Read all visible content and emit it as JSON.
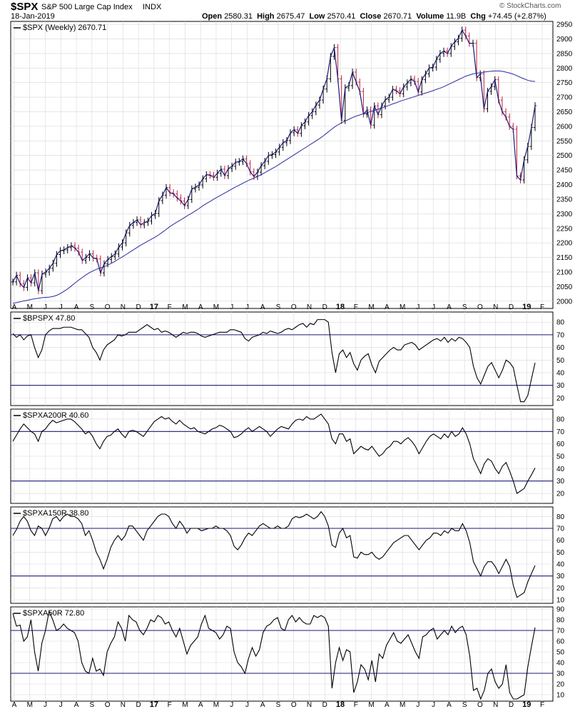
{
  "header": {
    "symbol": "$SPX",
    "name": "S&P 500 Large Cap Index",
    "exchange": "INDX",
    "date": "18-Jan-2019",
    "brand": "© StockCharts.com",
    "open_label": "Open",
    "open": "2580.31",
    "high_label": "High",
    "high": "2675.47",
    "low_label": "Low",
    "low": "2570.41",
    "close_label": "Close",
    "close": "2670.71",
    "volume_label": "Volume",
    "volume": "11.9B",
    "chg_label": "Chg",
    "chg": "+74.45 (+2.87%)"
  },
  "colors": {
    "price_line": "#1a1a7a",
    "ma_line": "#2a2aa0",
    "up_bar": "#000000",
    "down_bar": "#c0203a",
    "ref_line": "#1a1a7a",
    "grid": "#d8d8d8"
  },
  "x_axis_labels": [
    "A",
    "M",
    "J",
    "J",
    "A",
    "S",
    "O",
    "N",
    "D",
    "17",
    "F",
    "M",
    "A",
    "M",
    "J",
    "J",
    "A",
    "S",
    "O",
    "N",
    "D",
    "18",
    "F",
    "M",
    "A",
    "M",
    "J",
    "J",
    "A",
    "S",
    "O",
    "N",
    "D",
    "19",
    "F"
  ],
  "chart_data": [
    {
      "type": "line",
      "legend": "$SPX (Weekly) 2670.71",
      "series_names": [
        "$SPX (Weekly)"
      ],
      "y_ticks": [
        2000,
        2050,
        2100,
        2150,
        2200,
        2250,
        2300,
        2350,
        2400,
        2450,
        2500,
        2550,
        2600,
        2650,
        2700,
        2750,
        2800,
        2850,
        2900,
        2950
      ],
      "ylim": [
        1975,
        2960
      ],
      "close_series": [
        2066,
        2089,
        2060,
        2047,
        2080,
        2063,
        2097,
        2036,
        2093,
        2100,
        2113,
        2130,
        2160,
        2173,
        2176,
        2184,
        2190,
        2182,
        2168,
        2140,
        2150,
        2163,
        2148,
        2145,
        2097,
        2128,
        2143,
        2153,
        2162,
        2186,
        2200,
        2234,
        2260,
        2270,
        2279,
        2262,
        2270,
        2275,
        2294,
        2301,
        2345,
        2364,
        2390,
        2372,
        2368,
        2354,
        2344,
        2328,
        2349,
        2385,
        2391,
        2399,
        2420,
        2434,
        2432,
        2425,
        2439,
        2453,
        2431,
        2455,
        2463,
        2477,
        2479,
        2488,
        2472,
        2444,
        2428,
        2443,
        2465,
        2480,
        2500,
        2503,
        2512,
        2528,
        2544,
        2551,
        2578,
        2588,
        2576,
        2602,
        2615,
        2637,
        2650,
        2673,
        2690,
        2728,
        2763,
        2840,
        2870,
        2763,
        2620,
        2732,
        2740,
        2786,
        2752,
        2720,
        2642,
        2656,
        2604,
        2670,
        2640,
        2670,
        2692,
        2700,
        2727,
        2722,
        2712,
        2735,
        2749,
        2762,
        2754,
        2718,
        2760,
        2780,
        2800,
        2803,
        2830,
        2850,
        2858,
        2850,
        2874,
        2890,
        2902,
        2930,
        2910,
        2885,
        2885,
        2767,
        2780,
        2660,
        2720,
        2736,
        2760,
        2690,
        2650,
        2632,
        2600,
        2590,
        2430,
        2416,
        2485,
        2531,
        2596,
        2670.71
      ],
      "ma_series": [
        1993,
        1995,
        1998,
        2001,
        2003,
        2006,
        2008,
        2010,
        2012,
        2013,
        2014,
        2016,
        2020,
        2026,
        2034,
        2042,
        2052,
        2062,
        2072,
        2081,
        2090,
        2098,
        2104,
        2110,
        2114,
        2118,
        2124,
        2130,
        2137,
        2145,
        2152,
        2160,
        2168,
        2176,
        2184,
        2192,
        2199,
        2206,
        2213,
        2220,
        2228,
        2237,
        2246,
        2256,
        2264,
        2272,
        2279,
        2287,
        2295,
        2302,
        2310,
        2318,
        2327,
        2335,
        2342,
        2350,
        2357,
        2364,
        2371,
        2378,
        2385,
        2392,
        2398,
        2405,
        2411,
        2417,
        2422,
        2428,
        2434,
        2441,
        2448,
        2455,
        2462,
        2470,
        2478,
        2486,
        2494,
        2502,
        2510,
        2518,
        2526,
        2534,
        2542,
        2550,
        2558,
        2567,
        2577,
        2587,
        2597,
        2605,
        2612,
        2618,
        2624,
        2630,
        2635,
        2639,
        2643,
        2647,
        2651,
        2655,
        2659,
        2663,
        2667,
        2672,
        2677,
        2681,
        2686,
        2690,
        2694,
        2698,
        2702,
        2706,
        2710,
        2714,
        2718,
        2722,
        2727,
        2731,
        2736,
        2742,
        2748,
        2754,
        2760,
        2766,
        2772,
        2776,
        2780,
        2782,
        2784,
        2786,
        2788,
        2789,
        2790,
        2790,
        2789,
        2786,
        2783,
        2779,
        2774,
        2768,
        2763,
        2758,
        2755,
        2754
      ]
    },
    {
      "type": "line",
      "legend": "$BPSPX 47.80",
      "series_names": [
        "$BPSPX"
      ],
      "y_ticks": [
        20,
        30,
        40,
        50,
        60,
        70,
        80
      ],
      "ylim": [
        14,
        88
      ],
      "reference_lines": [
        70,
        30
      ],
      "values": [
        71,
        68,
        70,
        66,
        69,
        70,
        60,
        52,
        58,
        70,
        73,
        75,
        75,
        75,
        76,
        76,
        76,
        75,
        74,
        74,
        71,
        68,
        60,
        56,
        50,
        58,
        62,
        64,
        66,
        70,
        69,
        70,
        72,
        72,
        72,
        74,
        76,
        78,
        76,
        74,
        75,
        72,
        73,
        72,
        70,
        68,
        70,
        72,
        71,
        72,
        72,
        71,
        69,
        68,
        69,
        70,
        71,
        72,
        72,
        72,
        74,
        74,
        73,
        72,
        67,
        65,
        68,
        69,
        70,
        72,
        71,
        73,
        72,
        71,
        72,
        74,
        75,
        74,
        76,
        78,
        79,
        76,
        79,
        78,
        82,
        82,
        82,
        80,
        56,
        40,
        55,
        58,
        52,
        56,
        47,
        42,
        50,
        53,
        55,
        46,
        40,
        49,
        52,
        55,
        58,
        60,
        58,
        58,
        62,
        63,
        64,
        62,
        58,
        60,
        62,
        64,
        66,
        67,
        65,
        68,
        64,
        67,
        65,
        68,
        67,
        64,
        60,
        45,
        36,
        31,
        38,
        45,
        48,
        42,
        36,
        42,
        50,
        48,
        44,
        30,
        17,
        17,
        22,
        35,
        47.8
      ]
    },
    {
      "type": "line",
      "legend": "$SPXA200R 40.60",
      "series_names": [
        "$SPXA200R"
      ],
      "y_ticks": [
        20,
        30,
        40,
        50,
        60,
        70,
        80
      ],
      "ylim": [
        12,
        88
      ],
      "reference_lines": [
        70,
        30
      ],
      "values": [
        62,
        67,
        72,
        76,
        73,
        70,
        68,
        62,
        70,
        72,
        76,
        79,
        77,
        78,
        79,
        80,
        80,
        78,
        75,
        72,
        68,
        70,
        66,
        60,
        56,
        62,
        66,
        67,
        70,
        72,
        68,
        65,
        70,
        71,
        70,
        68,
        66,
        70,
        74,
        78,
        80,
        82,
        80,
        81,
        78,
        76,
        79,
        76,
        74,
        72,
        73,
        70,
        69,
        68,
        70,
        72,
        73,
        75,
        74,
        72,
        70,
        65,
        66,
        68,
        71,
        73,
        70,
        72,
        74,
        72,
        70,
        66,
        69,
        72,
        74,
        73,
        72,
        76,
        79,
        80,
        79,
        82,
        80,
        80,
        82,
        84,
        80,
        76,
        64,
        60,
        68,
        68,
        62,
        64,
        52,
        55,
        58,
        56,
        55,
        58,
        54,
        50,
        52,
        56,
        58,
        62,
        62,
        60,
        63,
        65,
        62,
        58,
        52,
        57,
        62,
        66,
        68,
        66,
        64,
        68,
        65,
        70,
        66,
        68,
        73,
        68,
        60,
        48,
        42,
        36,
        44,
        48,
        46,
        40,
        36,
        42,
        45,
        38,
        30,
        20,
        22,
        24,
        30,
        35,
        40.6
      ]
    },
    {
      "type": "line",
      "legend": "$SPXA150R 38.80",
      "series_names": [
        "$SPXA150R"
      ],
      "y_ticks": [
        10,
        20,
        30,
        40,
        50,
        60,
        70,
        80
      ],
      "ylim": [
        7,
        88
      ],
      "reference_lines": [
        70,
        30
      ],
      "values": [
        64,
        69,
        76,
        80,
        76,
        68,
        64,
        72,
        70,
        64,
        70,
        78,
        80,
        76,
        80,
        82,
        80,
        80,
        78,
        74,
        64,
        68,
        60,
        50,
        44,
        36,
        44,
        54,
        60,
        64,
        60,
        64,
        72,
        72,
        68,
        64,
        60,
        68,
        72,
        76,
        80,
        82,
        82,
        80,
        74,
        70,
        76,
        72,
        66,
        70,
        70,
        70,
        68,
        69,
        70,
        70,
        72,
        70,
        70,
        68,
        64,
        55,
        52,
        56,
        62,
        66,
        64,
        68,
        72,
        74,
        72,
        70,
        70,
        72,
        70,
        70,
        72,
        78,
        80,
        79,
        80,
        82,
        80,
        78,
        80,
        84,
        80,
        72,
        56,
        54,
        66,
        70,
        62,
        64,
        46,
        45,
        50,
        48,
        48,
        50,
        46,
        44,
        46,
        50,
        54,
        58,
        60,
        62,
        64,
        64,
        60,
        56,
        52,
        56,
        60,
        62,
        66,
        66,
        64,
        68,
        66,
        70,
        68,
        68,
        74,
        68,
        58,
        42,
        36,
        30,
        38,
        42,
        42,
        38,
        32,
        38,
        44,
        38,
        22,
        12,
        14,
        16,
        25,
        32,
        38.8
      ]
    },
    {
      "type": "line",
      "legend": "$SPXA50R 72.80",
      "series_names": [
        "$SPXA50R"
      ],
      "y_ticks": [
        10,
        20,
        30,
        40,
        50,
        60,
        70,
        80,
        90
      ],
      "ylim": [
        4,
        92
      ],
      "reference_lines": [
        70,
        30
      ],
      "values": [
        86,
        74,
        75,
        60,
        64,
        80,
        50,
        32,
        58,
        70,
        88,
        80,
        70,
        72,
        76,
        72,
        70,
        68,
        60,
        40,
        32,
        30,
        44,
        32,
        34,
        28,
        50,
        58,
        64,
        78,
        72,
        60,
        84,
        80,
        78,
        70,
        66,
        72,
        80,
        78,
        84,
        82,
        76,
        78,
        70,
        64,
        72,
        60,
        48,
        56,
        60,
        64,
        76,
        84,
        72,
        70,
        68,
        62,
        66,
        74,
        72,
        50,
        40,
        36,
        30,
        44,
        54,
        46,
        52,
        68,
        74,
        76,
        80,
        82,
        72,
        70,
        80,
        84,
        78,
        82,
        78,
        76,
        76,
        84,
        82,
        84,
        82,
        74,
        16,
        40,
        54,
        42,
        52,
        50,
        12,
        22,
        38,
        34,
        24,
        42,
        22,
        48,
        44,
        56,
        62,
        68,
        60,
        58,
        62,
        66,
        58,
        50,
        44,
        64,
        66,
        70,
        72,
        62,
        66,
        70,
        66,
        74,
        68,
        72,
        74,
        66,
        46,
        14,
        16,
        6,
        14,
        30,
        34,
        22,
        16,
        20,
        38,
        12,
        6,
        6,
        8,
        10,
        36,
        55,
        72.8
      ]
    }
  ]
}
